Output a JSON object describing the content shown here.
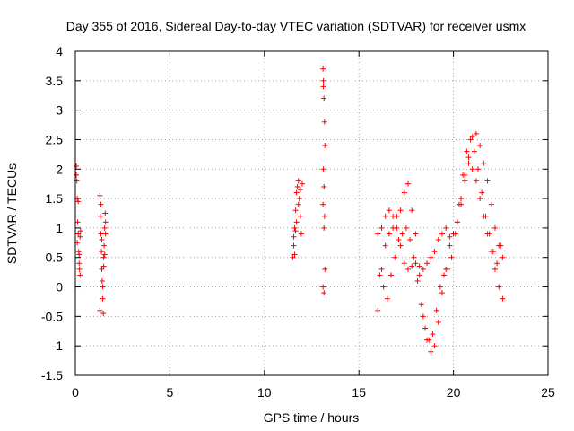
{
  "chart_data": {
    "type": "scatter",
    "title": "Day 355 of 2016, Sidereal Day-to-day VTEC variation (SDTVAR) for receiver usmx",
    "xlabel": "GPS time / hours",
    "ylabel": "SDTVAR / TECUs",
    "xlim": [
      0,
      25
    ],
    "ylim": [
      -1.5,
      4
    ],
    "xticks": [
      0,
      5,
      10,
      15,
      20,
      25
    ],
    "xtick_labels": [
      "0",
      "5",
      "10",
      "15",
      "20",
      "25"
    ],
    "yticks": [
      -1.5,
      -1,
      -0.5,
      0,
      0.5,
      1,
      1.5,
      2,
      2.5,
      3,
      3.5,
      4
    ],
    "ytick_labels": [
      "-1.5",
      "-1",
      "-0.5",
      "0",
      "0.5",
      "1",
      "1.5",
      "2",
      "2.5",
      "3",
      "3.5",
      "4"
    ],
    "grid": true,
    "marker": "+",
    "color": "#ff0000",
    "series": [
      {
        "name": "SDTVAR",
        "x": [
          0.05,
          0.08,
          0.1,
          0.12,
          0.15,
          0.18,
          0.2,
          0.22,
          0.25,
          0.28,
          0.1,
          0.15,
          0.2,
          0.05,
          0.25,
          1.3,
          1.32,
          1.35,
          1.38,
          1.4,
          1.42,
          1.45,
          1.48,
          1.5,
          1.52,
          1.55,
          1.58,
          1.6,
          1.35,
          1.45,
          1.5,
          1.4,
          1.55,
          1.3,
          1.6,
          11.5,
          11.55,
          11.6,
          11.65,
          11.7,
          11.75,
          11.8,
          11.85,
          11.9,
          11.95,
          12.0,
          11.6,
          11.7,
          11.8,
          11.9,
          11.55,
          11.65,
          13.1,
          13.12,
          13.15,
          13.18,
          13.2,
          13.12,
          13.15,
          13.1,
          13.18,
          13.15,
          13.2,
          13.1,
          13.15,
          13.12,
          16.0,
          16.2,
          16.4,
          16.6,
          16.8,
          17.0,
          17.2,
          17.4,
          17.6,
          17.8,
          18.0,
          18.2,
          18.4,
          18.6,
          18.8,
          19.0,
          19.2,
          19.4,
          19.6,
          19.8,
          20.0,
          20.2,
          20.4,
          20.6,
          20.8,
          21.0,
          21.2,
          21.4,
          21.6,
          21.8,
          22.0,
          22.2,
          22.4,
          22.6,
          16.0,
          16.2,
          16.4,
          16.6,
          16.8,
          17.0,
          17.2,
          17.4,
          17.6,
          17.8,
          18.0,
          18.2,
          18.4,
          18.6,
          18.8,
          19.0,
          19.2,
          19.4,
          19.6,
          19.8,
          20.0,
          20.2,
          20.4,
          20.6,
          20.8,
          21.0,
          21.2,
          21.4,
          21.6,
          21.8,
          22.0,
          22.2,
          22.4,
          22.6,
          16.1,
          16.3,
          16.5,
          16.7,
          16.9,
          17.1,
          17.3,
          17.5,
          17.7,
          17.9,
          18.1,
          18.3,
          18.5,
          18.7,
          18.9,
          19.1,
          19.3,
          19.5,
          19.7,
          19.9,
          20.1,
          20.3,
          20.5,
          20.7,
          20.9,
          21.1,
          21.3,
          21.5,
          21.7,
          21.9,
          22.1,
          22.3,
          22.5
        ],
        "y": [
          2.05,
          1.8,
          1.5,
          1.1,
          0.9,
          0.6,
          0.4,
          0.3,
          0.2,
          0.95,
          0.75,
          1.45,
          0.55,
          1.9,
          0.85,
          1.55,
          1.2,
          0.9,
          0.6,
          0.3,
          0.1,
          -0.2,
          -0.45,
          0.5,
          0.7,
          1.0,
          1.25,
          1.1,
          1.4,
          0.0,
          0.35,
          0.8,
          0.55,
          -0.4,
          0.9,
          0.5,
          0.7,
          1.0,
          1.3,
          1.6,
          1.7,
          1.8,
          1.5,
          1.2,
          0.9,
          1.75,
          0.55,
          1.1,
          1.4,
          1.65,
          0.85,
          0.95,
          3.7,
          3.4,
          3.2,
          2.8,
          2.4,
          2.0,
          1.7,
          1.4,
          1.2,
          1.0,
          0.3,
          0.0,
          -0.1,
          3.5,
          0.9,
          1.0,
          1.2,
          1.3,
          1.2,
          1.0,
          0.7,
          0.4,
          0.3,
          0.35,
          0.4,
          0.35,
          0.3,
          0.4,
          0.5,
          0.6,
          0.8,
          0.9,
          1.0,
          0.85,
          0.9,
          1.1,
          1.4,
          1.8,
          2.2,
          2.55,
          2.6,
          2.4,
          2.1,
          1.8,
          1.4,
          1.0,
          0.7,
          0.5,
          -0.4,
          0.3,
          0.7,
          0.9,
          1.0,
          1.2,
          1.3,
          1.6,
          1.75,
          1.3,
          0.9,
          0.2,
          -0.5,
          -0.9,
          -1.1,
          -1.0,
          -0.6,
          -0.1,
          0.3,
          0.7,
          0.9,
          1.1,
          1.5,
          1.9,
          2.1,
          2.0,
          1.8,
          1.5,
          1.2,
          0.9,
          0.6,
          0.3,
          0.0,
          -0.2,
          0.2,
          0.0,
          -0.2,
          0.2,
          0.5,
          0.8,
          0.9,
          1.0,
          0.8,
          0.5,
          0.1,
          -0.3,
          -0.7,
          -0.9,
          -0.8,
          -0.4,
          0.0,
          0.2,
          0.3,
          0.5,
          0.9,
          1.4,
          1.9,
          2.3,
          2.5,
          2.3,
          2.0,
          1.6,
          1.2,
          0.9,
          0.6,
          0.4,
          0.7
        ]
      }
    ]
  }
}
